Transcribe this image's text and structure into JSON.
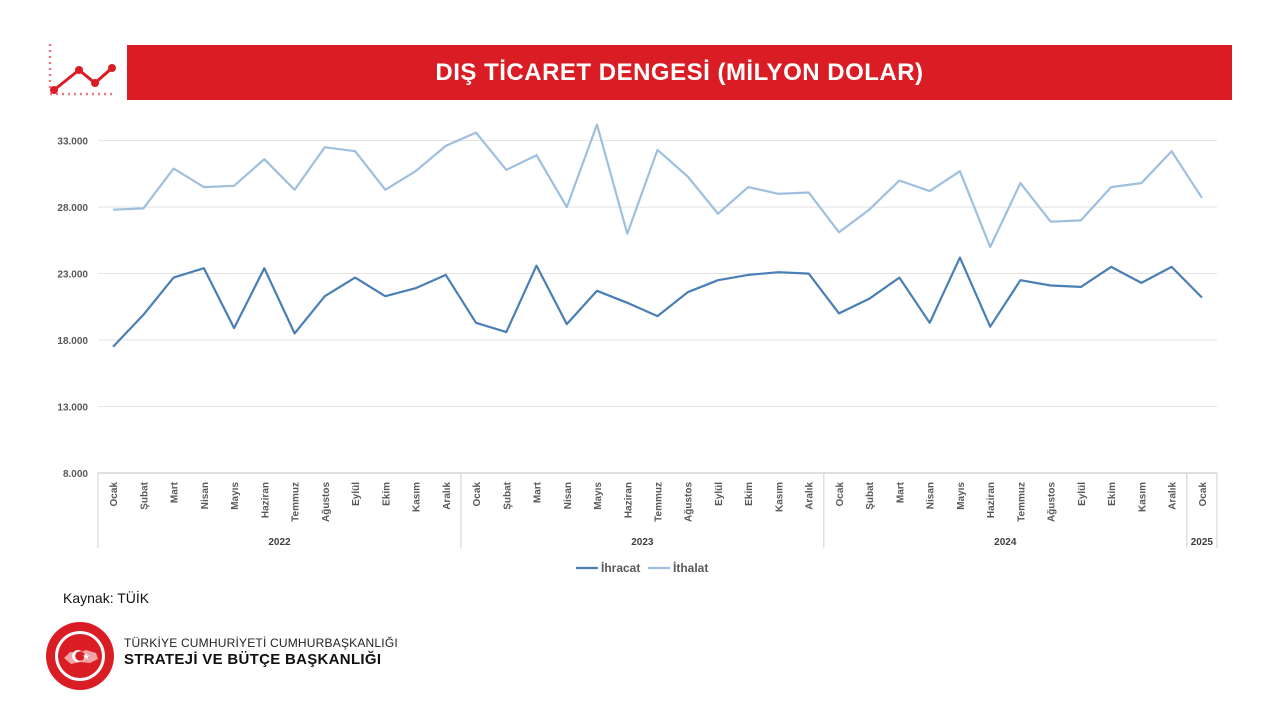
{
  "header": {
    "title": "DIŞ TİCARET DENGESİ (MİLYON DOLAR)"
  },
  "footer": {
    "source": "Kaynak: TÜİK",
    "org_line1": "TÜRKİYE CUMHURİYETİ CUMHURBAŞKANLIĞI",
    "org_line2": "STRATEJİ VE BÜTÇE BAŞKANLIĞI",
    "logo_text": "T.C. CUMHURBAŞKANLIĞI STRATEJİ VE BÜTÇE BAŞKANLIĞI"
  },
  "colors": {
    "brand_red": "#da1c24",
    "export_line": "#4a7fb5",
    "import_line": "#9fbfdf",
    "grid": "#e3e3e3"
  },
  "chart_data": {
    "type": "line",
    "title": "DIŞ TİCARET DENGESİ (MİLYON DOLAR)",
    "categories": [
      "Ocak",
      "Şubat",
      "Mart",
      "Nisan",
      "Mayıs",
      "Haziran",
      "Temmuz",
      "Ağustos",
      "Eylül",
      "Ekim",
      "Kasım",
      "Aralık",
      "Ocak",
      "Şubat",
      "Mart",
      "Nisan",
      "Mayıs",
      "Haziran",
      "Temmuz",
      "Ağustos",
      "Eylül",
      "Ekim",
      "Kasım",
      "Aralık",
      "Ocak",
      "Şubat",
      "Mart",
      "Nisan",
      "Mayıs",
      "Haziran",
      "Temmuz",
      "Ağustos",
      "Eylül",
      "Ekim",
      "Kasım",
      "Aralık",
      "Ocak"
    ],
    "years": [
      {
        "label": "2022",
        "count": 12
      },
      {
        "label": "2023",
        "count": 12
      },
      {
        "label": "2024",
        "count": 12
      },
      {
        "label": "2025",
        "count": 1
      }
    ],
    "series": [
      {
        "name": "İhracat",
        "color": "#4a7fb5",
        "values": [
          17500,
          19900,
          22700,
          23400,
          18900,
          23400,
          18500,
          21300,
          22700,
          21300,
          21900,
          22900,
          19300,
          18600,
          23600,
          19200,
          21700,
          20800,
          19800,
          21600,
          22500,
          22900,
          23100,
          23000,
          20000,
          21100,
          22700,
          19300,
          24200,
          19000,
          22500,
          22100,
          22000,
          23500,
          22300,
          23500,
          21200
        ]
      },
      {
        "name": "İthalat",
        "color": "#9fbfdf",
        "values": [
          27800,
          27900,
          30900,
          29500,
          29600,
          31600,
          29300,
          32500,
          32200,
          29300,
          30700,
          32600,
          33600,
          30800,
          31900,
          28000,
          34200,
          26000,
          32300,
          30300,
          27500,
          29500,
          29000,
          29100,
          26100,
          27800,
          30000,
          29200,
          30700,
          25000,
          29800,
          26900,
          27000,
          29500,
          29800,
          32200,
          28700
        ]
      }
    ],
    "yticks": [
      "8.000",
      "13.000",
      "18.000",
      "23.000",
      "28.000",
      "33.000"
    ],
    "ytick_values": [
      8000,
      13000,
      18000,
      23000,
      28000,
      33000
    ],
    "ylim": [
      8000,
      34500
    ],
    "grid": true,
    "legend_position": "bottom"
  }
}
